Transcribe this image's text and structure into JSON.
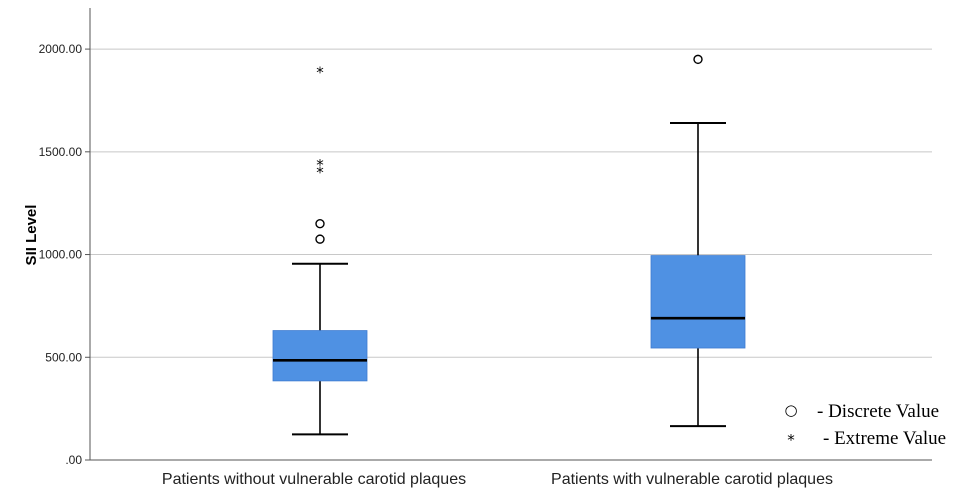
{
  "chart_data": {
    "type": "box",
    "ylabel": "SII Level",
    "xlabel": "",
    "ylim": [
      0,
      2200
    ],
    "yticks": [
      0,
      500,
      1000,
      1500,
      2000
    ],
    "ytick_labels": [
      ".00",
      "500.00",
      "1000.00",
      "1500.00",
      "2000.00"
    ],
    "grid": true,
    "box_color": "#4f91e3",
    "categories": [
      "Patients without vulnerable carotid plaques",
      "Patients with vulnerable carotid plaques"
    ],
    "boxes": [
      {
        "whisker_low": 125,
        "q1": 385,
        "median": 485,
        "q3": 630,
        "whisker_high": 955,
        "discrete_outliers": [
          1075,
          1150
        ],
        "extreme_outliers": [
          1405,
          1440,
          1890
        ]
      },
      {
        "whisker_low": 165,
        "q1": 545,
        "median": 690,
        "q3": 995,
        "whisker_high": 1640,
        "discrete_outliers": [
          1950
        ],
        "extreme_outliers": []
      }
    ],
    "legend": {
      "position": "bottom-right",
      "items": [
        {
          "marker": "circle",
          "symbol": "○",
          "label": "- Discrete Value"
        },
        {
          "marker": "star",
          "symbol": "*",
          "label": "- Extreme Value"
        }
      ]
    }
  }
}
